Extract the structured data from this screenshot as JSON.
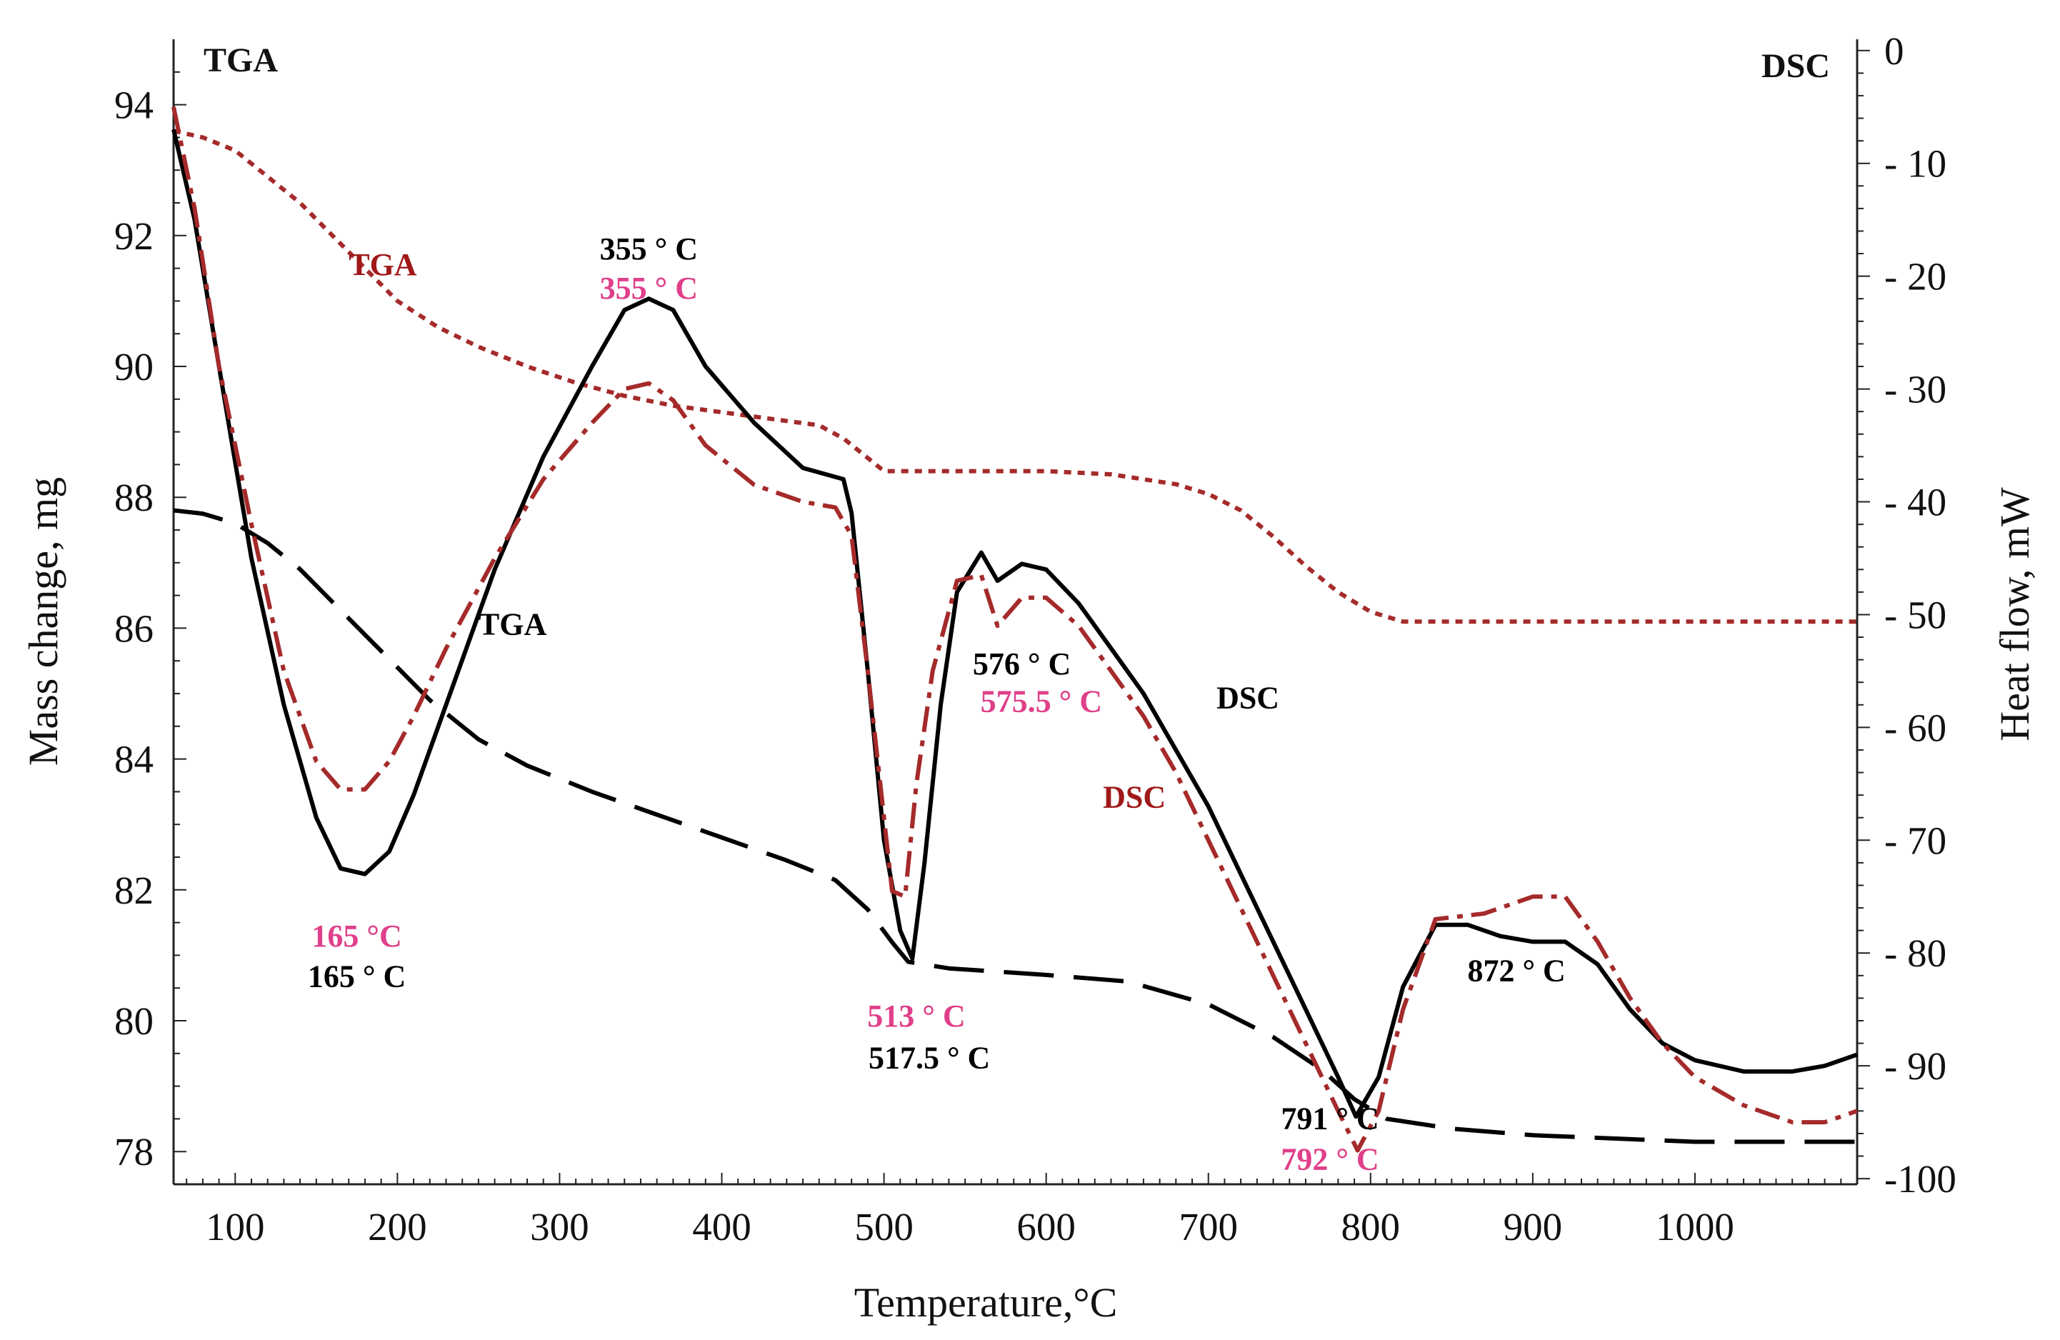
{
  "chart_data": {
    "type": "line",
    "xlabel": "Temperature,°C",
    "ylabel_left": "Mass change, mg",
    "ylabel_right": "Heat flow, mW",
    "corner_label_left": "TGA",
    "corner_label_right": "DSC",
    "xlim": [
      62,
      1100
    ],
    "ylim_left": [
      77.5,
      95
    ],
    "ylim_right": [
      -100.5,
      1
    ],
    "x_ticks": [
      100,
      200,
      300,
      400,
      500,
      600,
      700,
      800,
      900,
      1000
    ],
    "y_left_ticks": [
      78,
      80,
      82,
      84,
      86,
      88,
      90,
      92,
      94
    ],
    "y_right_ticks": [
      0,
      -10,
      -20,
      -30,
      -40,
      -50,
      -60,
      -70,
      -80,
      -90,
      -100
    ],
    "tick_labels": {
      "x": [
        "100",
        "200",
        "300",
        "400",
        "500",
        "600",
        "700",
        "800",
        "900",
        "1000"
      ],
      "y_left": [
        "78",
        "80",
        "82",
        "84",
        "86",
        "88",
        "90",
        "92",
        "94"
      ],
      "y_right": [
        "0",
        "- 10",
        "- 20",
        "- 30",
        "- 40",
        "- 50",
        "- 60",
        "- 70",
        "- 80",
        "- 90",
        "-100"
      ]
    },
    "grid": false,
    "colors": {
      "black": "#000000",
      "dark_red": "#a52a2a",
      "pink": "#e0408a",
      "label_red": "#a01818"
    },
    "series": [
      {
        "name": "TGA",
        "axis": "left",
        "color": "#a52a2a",
        "style": "dotted",
        "points": [
          [
            62,
            93.6
          ],
          [
            80,
            93.5
          ],
          [
            100,
            93.3
          ],
          [
            120,
            92.9
          ],
          [
            140,
            92.5
          ],
          [
            160,
            92.0
          ],
          [
            180,
            91.5
          ],
          [
            200,
            91.0
          ],
          [
            225,
            90.6
          ],
          [
            250,
            90.3
          ],
          [
            280,
            90.0
          ],
          [
            310,
            89.75
          ],
          [
            340,
            89.55
          ],
          [
            370,
            89.4
          ],
          [
            400,
            89.3
          ],
          [
            430,
            89.2
          ],
          [
            460,
            89.1
          ],
          [
            475,
            88.9
          ],
          [
            490,
            88.6
          ],
          [
            500,
            88.4
          ],
          [
            520,
            88.4
          ],
          [
            560,
            88.4
          ],
          [
            600,
            88.4
          ],
          [
            640,
            88.35
          ],
          [
            680,
            88.2
          ],
          [
            700,
            88.05
          ],
          [
            720,
            87.8
          ],
          [
            740,
            87.4
          ],
          [
            760,
            86.95
          ],
          [
            780,
            86.55
          ],
          [
            800,
            86.25
          ],
          [
            820,
            86.1
          ],
          [
            860,
            86.1
          ],
          [
            950,
            86.1
          ],
          [
            1050,
            86.1
          ],
          [
            1100,
            86.1
          ]
        ]
      },
      {
        "name": "TGA",
        "axis": "left",
        "color": "#000000",
        "style": "dashed",
        "points": [
          [
            62,
            87.8
          ],
          [
            80,
            87.75
          ],
          [
            100,
            87.6
          ],
          [
            120,
            87.3
          ],
          [
            140,
            86.9
          ],
          [
            160,
            86.4
          ],
          [
            180,
            85.9
          ],
          [
            200,
            85.4
          ],
          [
            220,
            84.9
          ],
          [
            250,
            84.3
          ],
          [
            280,
            83.9
          ],
          [
            320,
            83.5
          ],
          [
            360,
            83.15
          ],
          [
            400,
            82.8
          ],
          [
            440,
            82.45
          ],
          [
            470,
            82.15
          ],
          [
            490,
            81.7
          ],
          [
            505,
            81.2
          ],
          [
            515,
            80.9
          ],
          [
            540,
            80.8
          ],
          [
            600,
            80.7
          ],
          [
            650,
            80.6
          ],
          [
            700,
            80.25
          ],
          [
            740,
            79.75
          ],
          [
            770,
            79.25
          ],
          [
            790,
            78.8
          ],
          [
            810,
            78.5
          ],
          [
            850,
            78.35
          ],
          [
            900,
            78.25
          ],
          [
            950,
            78.2
          ],
          [
            1000,
            78.15
          ],
          [
            1100,
            78.15
          ]
        ]
      },
      {
        "name": "DSC",
        "axis": "right",
        "color": "#000000",
        "style": "solid",
        "points": [
          [
            62,
            -7
          ],
          [
            75,
            -15
          ],
          [
            90,
            -28
          ],
          [
            110,
            -45
          ],
          [
            130,
            -58
          ],
          [
            150,
            -68
          ],
          [
            165,
            -72.5
          ],
          [
            180,
            -73
          ],
          [
            195,
            -71
          ],
          [
            210,
            -66
          ],
          [
            230,
            -58
          ],
          [
            260,
            -46
          ],
          [
            290,
            -36
          ],
          [
            320,
            -28
          ],
          [
            340,
            -23
          ],
          [
            355,
            -22
          ],
          [
            370,
            -23
          ],
          [
            390,
            -28
          ],
          [
            420,
            -33
          ],
          [
            450,
            -37
          ],
          [
            475,
            -38
          ],
          [
            480,
            -41
          ],
          [
            490,
            -55
          ],
          [
            500,
            -70
          ],
          [
            510,
            -78
          ],
          [
            517.5,
            -80.5
          ],
          [
            525,
            -72
          ],
          [
            535,
            -58
          ],
          [
            545,
            -48
          ],
          [
            560,
            -44.5
          ],
          [
            570,
            -47
          ],
          [
            585,
            -45.5
          ],
          [
            600,
            -46
          ],
          [
            620,
            -49
          ],
          [
            640,
            -53
          ],
          [
            660,
            -57
          ],
          [
            680,
            -62
          ],
          [
            700,
            -67
          ],
          [
            720,
            -73
          ],
          [
            740,
            -79
          ],
          [
            760,
            -85
          ],
          [
            780,
            -91
          ],
          [
            791,
            -94.5
          ],
          [
            805,
            -91
          ],
          [
            820,
            -83
          ],
          [
            840,
            -77.5
          ],
          [
            860,
            -77.5
          ],
          [
            880,
            -78.5
          ],
          [
            900,
            -79
          ],
          [
            920,
            -79
          ],
          [
            940,
            -81
          ],
          [
            960,
            -85
          ],
          [
            980,
            -88
          ],
          [
            1000,
            -89.5
          ],
          [
            1030,
            -90.5
          ],
          [
            1060,
            -90.5
          ],
          [
            1080,
            -90
          ],
          [
            1100,
            -89
          ]
        ]
      },
      {
        "name": "DSC",
        "axis": "right",
        "color": "#a52a2a",
        "style": "dashdot",
        "points": [
          [
            62,
            -5
          ],
          [
            75,
            -14
          ],
          [
            90,
            -28
          ],
          [
            110,
            -42
          ],
          [
            130,
            -55
          ],
          [
            150,
            -63
          ],
          [
            165,
            -65.5
          ],
          [
            180,
            -65.5
          ],
          [
            195,
            -63
          ],
          [
            210,
            -59
          ],
          [
            230,
            -53
          ],
          [
            260,
            -45
          ],
          [
            290,
            -38
          ],
          [
            320,
            -33
          ],
          [
            340,
            -30
          ],
          [
            355,
            -29.5
          ],
          [
            370,
            -31
          ],
          [
            390,
            -35
          ],
          [
            420,
            -38.5
          ],
          [
            450,
            -40
          ],
          [
            470,
            -40.5
          ],
          [
            480,
            -43
          ],
          [
            490,
            -55
          ],
          [
            500,
            -68
          ],
          [
            505,
            -74.5
          ],
          [
            513,
            -75
          ],
          [
            520,
            -65
          ],
          [
            530,
            -55
          ],
          [
            545,
            -47
          ],
          [
            560,
            -46.5
          ],
          [
            570,
            -51
          ],
          [
            585,
            -48.5
          ],
          [
            600,
            -48.5
          ],
          [
            620,
            -51
          ],
          [
            640,
            -55
          ],
          [
            660,
            -59
          ],
          [
            680,
            -64
          ],
          [
            700,
            -70
          ],
          [
            720,
            -76
          ],
          [
            740,
            -82
          ],
          [
            760,
            -88
          ],
          [
            780,
            -94
          ],
          [
            792,
            -97.5
          ],
          [
            805,
            -94
          ],
          [
            820,
            -85
          ],
          [
            840,
            -77
          ],
          [
            870,
            -76.5
          ],
          [
            900,
            -75
          ],
          [
            920,
            -75
          ],
          [
            940,
            -79
          ],
          [
            960,
            -84
          ],
          [
            980,
            -88
          ],
          [
            1000,
            -91
          ],
          [
            1030,
            -93.5
          ],
          [
            1060,
            -95
          ],
          [
            1080,
            -95
          ],
          [
            1100,
            -94
          ]
        ]
      }
    ],
    "series_labels": [
      {
        "text": "TGA",
        "color": "#a01818",
        "x": 170,
        "y": 91.4,
        "axis": "left"
      },
      {
        "text": "TGA",
        "color": "#000000",
        "x": 250,
        "y": 85.9,
        "axis": "left"
      },
      {
        "text": "DSC",
        "color": "#000000",
        "x": 705,
        "y": -58.3,
        "axis": "right"
      },
      {
        "text": "DSC",
        "color": "#a01818",
        "x": 635,
        "y": -67.1,
        "axis": "right"
      }
    ],
    "annotations": [
      {
        "text": "355 ° C",
        "color": "#000000",
        "x": 355,
        "y": -18.5,
        "axis": "right"
      },
      {
        "text": "355 ° C",
        "color": "#e0408a",
        "x": 355,
        "y": -22.0,
        "axis": "right"
      },
      {
        "text": "165 °C",
        "color": "#e0408a",
        "x": 175,
        "y": -79.4,
        "axis": "right"
      },
      {
        "text": "165 ° C",
        "color": "#000000",
        "x": 175,
        "y": -83.0,
        "axis": "right"
      },
      {
        "text": "513 ° C",
        "color": "#e0408a",
        "x": 520,
        "y": -86.5,
        "axis": "right"
      },
      {
        "text": "517.5 ° C",
        "color": "#000000",
        "x": 528,
        "y": -90.2,
        "axis": "right"
      },
      {
        "text": "576 ° C",
        "color": "#000000",
        "x": 585,
        "y": -55.3,
        "axis": "right"
      },
      {
        "text": "575.5 ° C",
        "color": "#e0408a",
        "x": 597,
        "y": -58.6,
        "axis": "right"
      },
      {
        "text": "872 ° C",
        "color": "#000000",
        "x": 890,
        "y": -82.5,
        "axis": "right"
      },
      {
        "text": "791 ° C",
        "color": "#000000",
        "x": 775,
        "y": -95.6,
        "axis": "right"
      },
      {
        "text": "792 ° C",
        "color": "#e0408a",
        "x": 775,
        "y": -99.2,
        "axis": "right"
      }
    ]
  }
}
